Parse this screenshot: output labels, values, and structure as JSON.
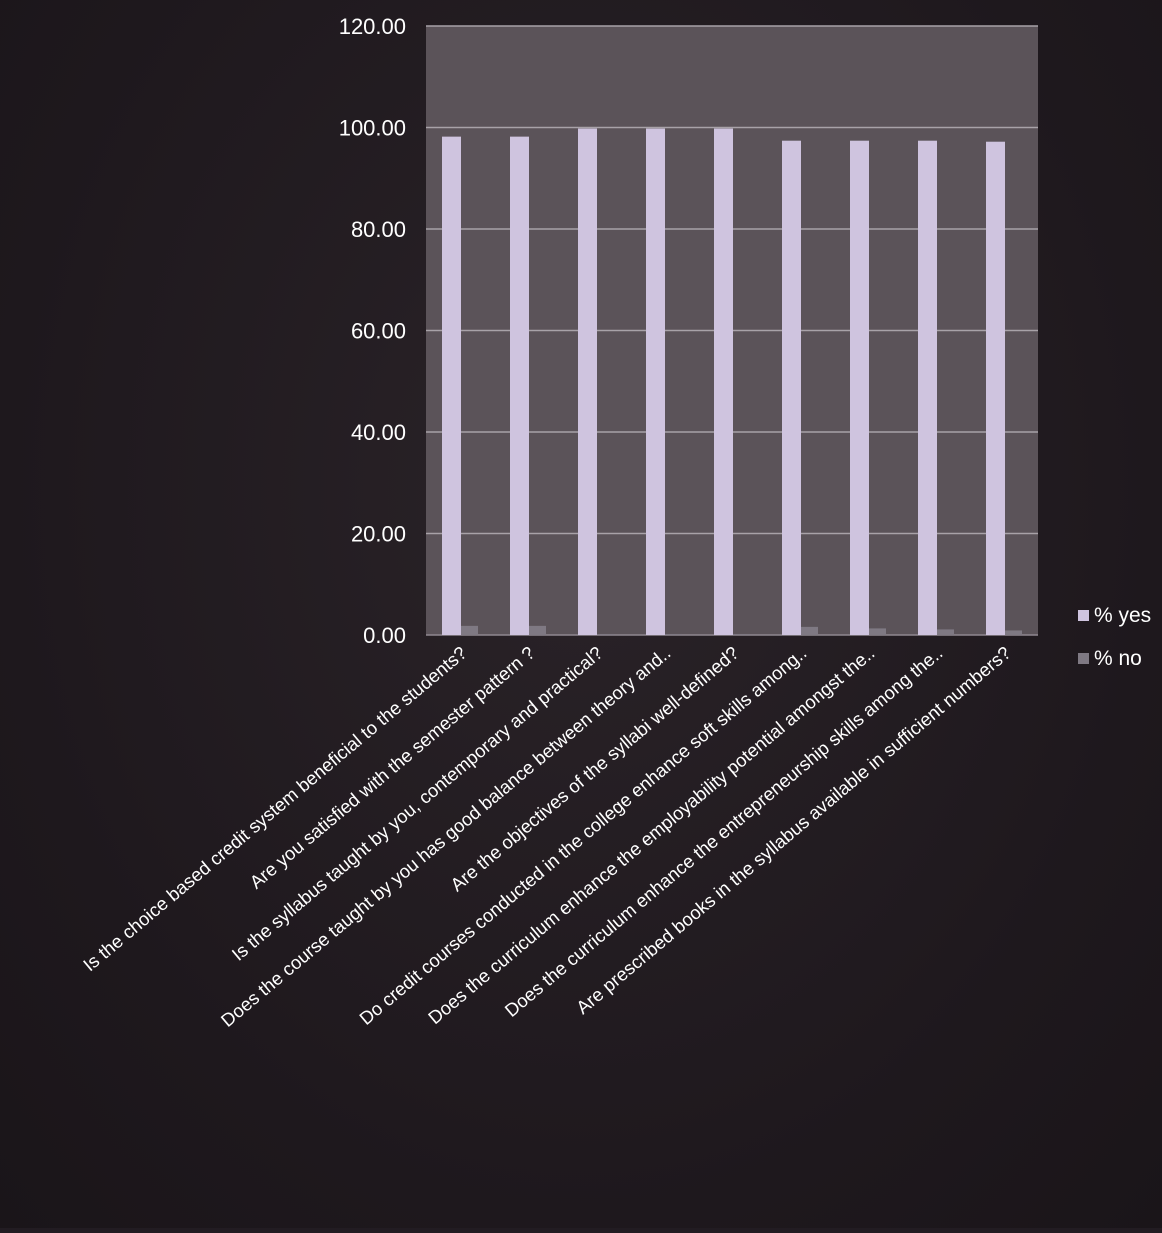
{
  "chart_data": {
    "type": "bar",
    "title": "",
    "xlabel": "",
    "ylabel": "",
    "ylim": [
      0,
      120
    ],
    "y_ticks": [
      "0.00",
      "20.00",
      "40.00",
      "60.00",
      "80.00",
      "100.00",
      "120.00"
    ],
    "y_tick_values": [
      0,
      20,
      40,
      60,
      80,
      100,
      120
    ],
    "grid": true,
    "legend_position": "right",
    "categories": [
      "Is the choice based credit system beneficial to the students?",
      "Are you satisfied with the semester pattern ?",
      "Is the syllabus taught by you, contemporary and practical?",
      "Does the course taught by you has good balance between theory and..",
      "Are the objectives of the syllabi well-defined?",
      "Do credit courses conducted in the college enhance soft skills among..",
      "Does  the curriculum enhance the employability potential amongst the..",
      "Does the curriculum enhance the entrepreneurship skills among the..",
      "Are prescribed books in the syllabus available  in sufficient numbers?"
    ],
    "series": [
      {
        "name": "% yes",
        "values": [
          98.2,
          98.2,
          99.8,
          99.8,
          99.8,
          97.4,
          97.4,
          97.4,
          97.2
        ]
      },
      {
        "name": "% no",
        "values": [
          1.8,
          1.8,
          0.2,
          0.2,
          0.2,
          1.6,
          1.3,
          1.1,
          0.9
        ]
      }
    ],
    "colors": {
      "plot_background": "#5b5359",
      "gridline": "#a8a2a8",
      "yes": "#cfc4df",
      "no": "#7f7983",
      "text": "#ffffff",
      "page_background": "#221c22"
    }
  }
}
